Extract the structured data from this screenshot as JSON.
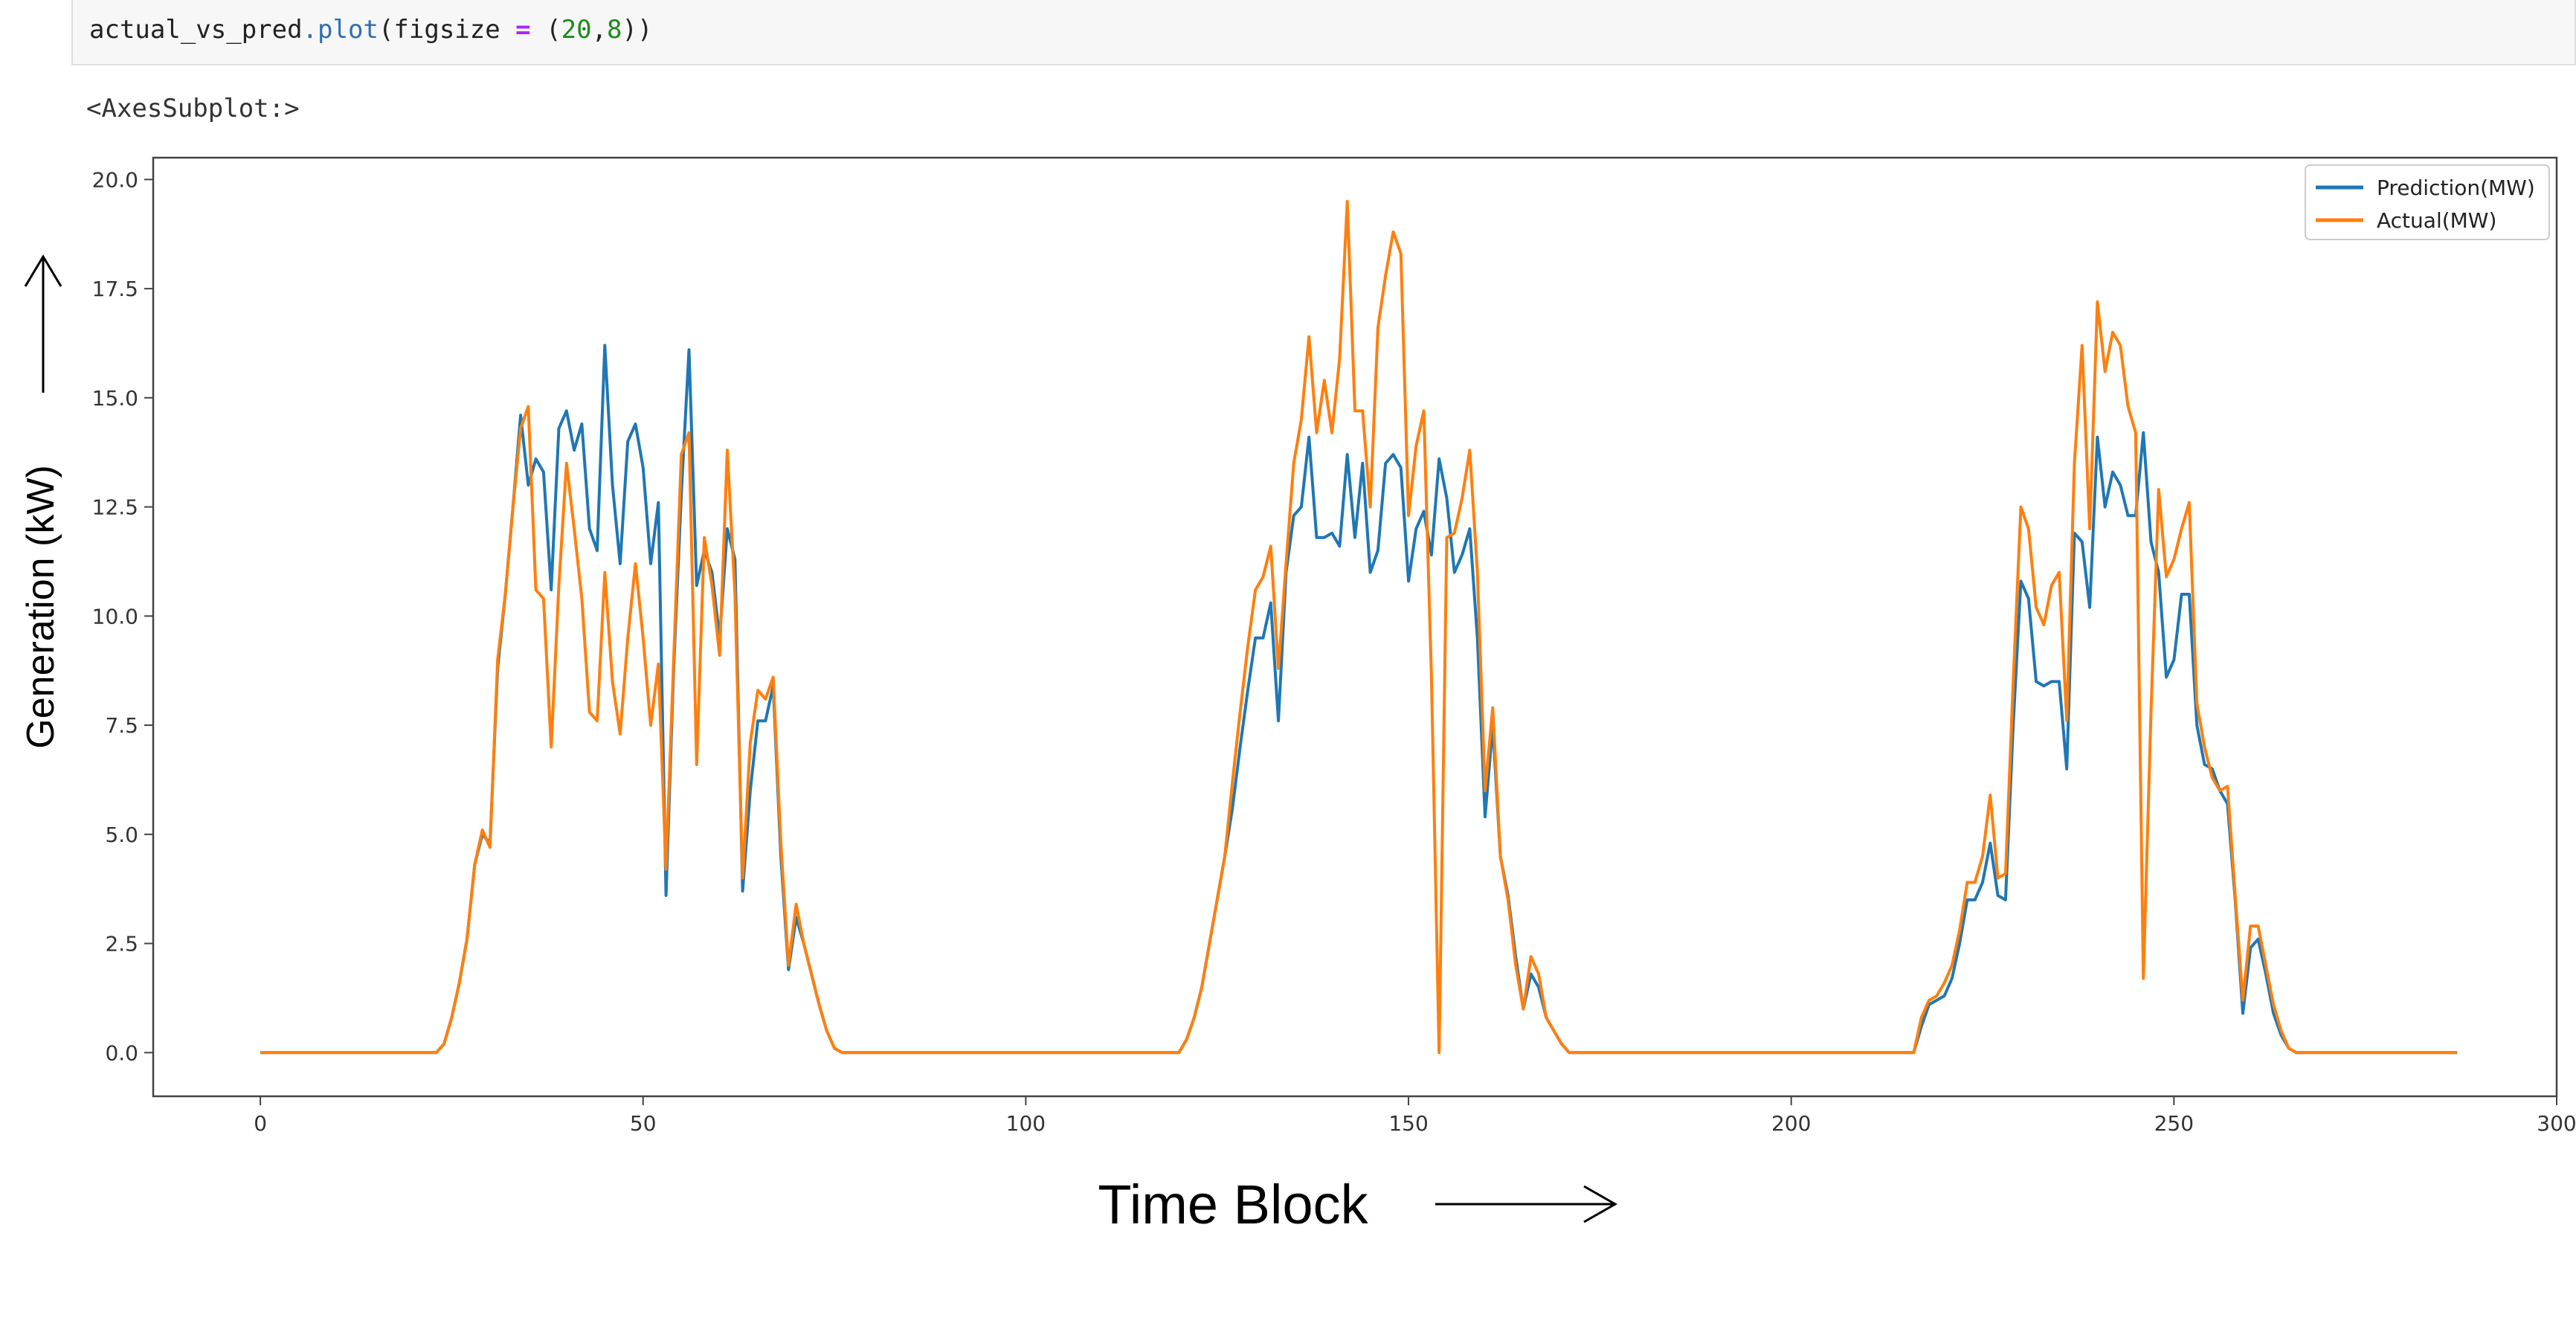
{
  "notebook": {
    "code_object": "actual_vs_pred",
    "code_method": ".plot",
    "code_args_open": "(figsize ",
    "code_op": "=",
    "code_tuple_open": " (",
    "code_num_a": "20",
    "code_comma": ",",
    "code_num_b": "8",
    "code_close": "))",
    "output_repr": "<AxesSubplot:>"
  },
  "chart_data": {
    "type": "line",
    "title": "",
    "xlabel": "Time Block",
    "ylabel": "Generation (kW)",
    "xlim": [
      -14,
      300
    ],
    "ylim": [
      -1,
      20.5
    ],
    "xticks": [
      0,
      50,
      100,
      150,
      200,
      250,
      300
    ],
    "yticks": [
      0.0,
      2.5,
      5.0,
      7.5,
      10.0,
      12.5,
      15.0,
      17.5,
      20.0
    ],
    "ytick_labels": [
      "0.0",
      "2.5",
      "5.0",
      "7.5",
      "10.0",
      "12.5",
      "15.0",
      "17.5",
      "20.0"
    ],
    "grid": false,
    "legend_position": "top-right",
    "series": [
      {
        "name": "Prediction(MW)",
        "color": "#1f77b4",
        "points": [
          [
            0,
            0
          ],
          [
            23,
            0
          ],
          [
            24,
            0.2
          ],
          [
            25,
            0.8
          ],
          [
            26,
            1.6
          ],
          [
            27,
            2.6
          ],
          [
            28,
            4.3
          ],
          [
            29,
            5.0
          ],
          [
            30,
            4.8
          ],
          [
            31,
            8.8
          ],
          [
            32,
            10.5
          ],
          [
            33,
            12.5
          ],
          [
            34,
            14.6
          ],
          [
            35,
            13.0
          ],
          [
            36,
            13.6
          ],
          [
            37,
            13.3
          ],
          [
            38,
            10.6
          ],
          [
            39,
            14.3
          ],
          [
            40,
            14.7
          ],
          [
            41,
            13.8
          ],
          [
            42,
            14.4
          ],
          [
            43,
            12.0
          ],
          [
            44,
            11.5
          ],
          [
            45,
            16.2
          ],
          [
            46,
            13.0
          ],
          [
            47,
            11.2
          ],
          [
            48,
            14.0
          ],
          [
            49,
            14.4
          ],
          [
            50,
            13.4
          ],
          [
            51,
            11.2
          ],
          [
            52,
            12.6
          ],
          [
            53,
            3.6
          ],
          [
            54,
            8.8
          ],
          [
            55,
            12.8
          ],
          [
            56,
            16.1
          ],
          [
            57,
            10.7
          ],
          [
            58,
            11.5
          ],
          [
            59,
            11.0
          ],
          [
            60,
            9.5
          ],
          [
            61,
            12.0
          ],
          [
            62,
            11.3
          ],
          [
            63,
            3.7
          ],
          [
            64,
            6.0
          ],
          [
            65,
            7.6
          ],
          [
            66,
            7.6
          ],
          [
            67,
            8.4
          ],
          [
            68,
            4.5
          ],
          [
            69,
            1.9
          ],
          [
            70,
            3.1
          ],
          [
            71,
            2.5
          ],
          [
            72,
            1.8
          ],
          [
            73,
            1.1
          ],
          [
            74,
            0.5
          ],
          [
            75,
            0.1
          ],
          [
            76,
            0
          ],
          [
            120,
            0
          ],
          [
            121,
            0.3
          ],
          [
            122,
            0.8
          ],
          [
            123,
            1.5
          ],
          [
            124,
            2.5
          ],
          [
            125,
            3.5
          ],
          [
            126,
            4.5
          ],
          [
            127,
            5.6
          ],
          [
            128,
            7.0
          ],
          [
            129,
            8.3
          ],
          [
            130,
            9.5
          ],
          [
            131,
            9.5
          ],
          [
            132,
            10.3
          ],
          [
            133,
            7.6
          ],
          [
            134,
            11.0
          ],
          [
            135,
            12.3
          ],
          [
            136,
            12.5
          ],
          [
            137,
            14.1
          ],
          [
            138,
            11.8
          ],
          [
            139,
            11.8
          ],
          [
            140,
            11.9
          ],
          [
            141,
            11.6
          ],
          [
            142,
            13.7
          ],
          [
            143,
            11.8
          ],
          [
            144,
            13.5
          ],
          [
            145,
            11.0
          ],
          [
            146,
            11.5
          ],
          [
            147,
            13.5
          ],
          [
            148,
            13.7
          ],
          [
            149,
            13.4
          ],
          [
            150,
            10.8
          ],
          [
            151,
            12.0
          ],
          [
            152,
            12.4
          ],
          [
            153,
            11.4
          ],
          [
            154,
            13.6
          ],
          [
            155,
            12.7
          ],
          [
            156,
            11.0
          ],
          [
            157,
            11.4
          ],
          [
            158,
            12.0
          ],
          [
            159,
            9.5
          ],
          [
            160,
            5.4
          ],
          [
            161,
            7.5
          ],
          [
            162,
            4.5
          ],
          [
            163,
            3.6
          ],
          [
            164,
            2.2
          ],
          [
            165,
            1.0
          ],
          [
            166,
            1.8
          ],
          [
            167,
            1.5
          ],
          [
            168,
            0.8
          ],
          [
            169,
            0.5
          ],
          [
            170,
            0.2
          ],
          [
            171,
            0
          ],
          [
            216,
            0
          ],
          [
            217,
            0.6
          ],
          [
            218,
            1.1
          ],
          [
            219,
            1.2
          ],
          [
            220,
            1.3
          ],
          [
            221,
            1.7
          ],
          [
            222,
            2.5
          ],
          [
            223,
            3.5
          ],
          [
            224,
            3.5
          ],
          [
            225,
            3.9
          ],
          [
            226,
            4.8
          ],
          [
            227,
            3.6
          ],
          [
            228,
            3.5
          ],
          [
            229,
            7.5
          ],
          [
            230,
            10.8
          ],
          [
            231,
            10.4
          ],
          [
            232,
            8.5
          ],
          [
            233,
            8.4
          ],
          [
            234,
            8.5
          ],
          [
            235,
            8.5
          ],
          [
            236,
            6.5
          ],
          [
            237,
            11.9
          ],
          [
            238,
            11.7
          ],
          [
            239,
            10.2
          ],
          [
            240,
            14.1
          ],
          [
            241,
            12.5
          ],
          [
            242,
            13.3
          ],
          [
            243,
            13.0
          ],
          [
            244,
            12.3
          ],
          [
            245,
            12.3
          ],
          [
            246,
            14.2
          ],
          [
            247,
            11.7
          ],
          [
            248,
            11.0
          ],
          [
            249,
            8.6
          ],
          [
            250,
            9.0
          ],
          [
            251,
            10.5
          ],
          [
            252,
            10.5
          ],
          [
            253,
            7.5
          ],
          [
            254,
            6.6
          ],
          [
            255,
            6.5
          ],
          [
            256,
            6.0
          ],
          [
            257,
            5.7
          ],
          [
            258,
            3.5
          ],
          [
            259,
            0.9
          ],
          [
            260,
            2.4
          ],
          [
            261,
            2.6
          ],
          [
            262,
            1.8
          ],
          [
            263,
            0.9
          ],
          [
            264,
            0.4
          ],
          [
            265,
            0.1
          ],
          [
            266,
            0
          ],
          [
            287,
            0
          ]
        ]
      },
      {
        "name": "Actual(MW)",
        "color": "#ff7f0e",
        "points": [
          [
            0,
            0
          ],
          [
            23,
            0
          ],
          [
            24,
            0.2
          ],
          [
            25,
            0.8
          ],
          [
            26,
            1.6
          ],
          [
            27,
            2.6
          ],
          [
            28,
            4.3
          ],
          [
            29,
            5.1
          ],
          [
            30,
            4.7
          ],
          [
            31,
            9.0
          ],
          [
            32,
            10.5
          ],
          [
            33,
            12.5
          ],
          [
            34,
            14.3
          ],
          [
            35,
            14.8
          ],
          [
            36,
            10.6
          ],
          [
            37,
            10.4
          ],
          [
            38,
            7.0
          ],
          [
            39,
            10.7
          ],
          [
            40,
            13.5
          ],
          [
            41,
            12.0
          ],
          [
            42,
            10.4
          ],
          [
            43,
            7.8
          ],
          [
            44,
            7.6
          ],
          [
            45,
            11.0
          ],
          [
            46,
            8.5
          ],
          [
            47,
            7.3
          ],
          [
            48,
            9.5
          ],
          [
            49,
            11.2
          ],
          [
            50,
            9.5
          ],
          [
            51,
            7.5
          ],
          [
            52,
            8.9
          ],
          [
            53,
            4.2
          ],
          [
            54,
            9.0
          ],
          [
            55,
            13.7
          ],
          [
            56,
            14.2
          ],
          [
            57,
            6.6
          ],
          [
            58,
            11.8
          ],
          [
            59,
            10.7
          ],
          [
            60,
            9.1
          ],
          [
            61,
            13.8
          ],
          [
            62,
            10.5
          ],
          [
            63,
            4.0
          ],
          [
            64,
            7.1
          ],
          [
            65,
            8.3
          ],
          [
            66,
            8.1
          ],
          [
            67,
            8.6
          ],
          [
            68,
            4.8
          ],
          [
            69,
            2.0
          ],
          [
            70,
            3.4
          ],
          [
            71,
            2.5
          ],
          [
            72,
            1.8
          ],
          [
            73,
            1.1
          ],
          [
            74,
            0.5
          ],
          [
            75,
            0.1
          ],
          [
            76,
            0
          ],
          [
            120,
            0
          ],
          [
            121,
            0.3
          ],
          [
            122,
            0.8
          ],
          [
            123,
            1.5
          ],
          [
            124,
            2.5
          ],
          [
            125,
            3.5
          ],
          [
            126,
            4.5
          ],
          [
            127,
            6.2
          ],
          [
            128,
            7.8
          ],
          [
            129,
            9.3
          ],
          [
            130,
            10.6
          ],
          [
            131,
            10.9
          ],
          [
            132,
            11.6
          ],
          [
            133,
            8.8
          ],
          [
            134,
            11.2
          ],
          [
            135,
            13.5
          ],
          [
            136,
            14.5
          ],
          [
            137,
            16.4
          ],
          [
            138,
            14.2
          ],
          [
            139,
            15.4
          ],
          [
            140,
            14.2
          ],
          [
            141,
            15.9
          ],
          [
            142,
            19.5
          ],
          [
            143,
            14.7
          ],
          [
            144,
            14.7
          ],
          [
            145,
            12.5
          ],
          [
            146,
            16.6
          ],
          [
            147,
            17.8
          ],
          [
            148,
            18.8
          ],
          [
            149,
            18.3
          ],
          [
            150,
            12.3
          ],
          [
            151,
            13.9
          ],
          [
            152,
            14.7
          ],
          [
            153,
            8.6
          ],
          [
            154,
            0
          ],
          [
            155,
            11.8
          ],
          [
            156,
            11.9
          ],
          [
            157,
            12.7
          ],
          [
            158,
            13.8
          ],
          [
            159,
            11.0
          ],
          [
            160,
            6.0
          ],
          [
            161,
            7.9
          ],
          [
            162,
            4.5
          ],
          [
            163,
            3.5
          ],
          [
            164,
            2.0
          ],
          [
            165,
            1.0
          ],
          [
            166,
            2.2
          ],
          [
            167,
            1.8
          ],
          [
            168,
            0.8
          ],
          [
            169,
            0.5
          ],
          [
            170,
            0.2
          ],
          [
            171,
            0
          ],
          [
            216,
            0
          ],
          [
            217,
            0.8
          ],
          [
            218,
            1.2
          ],
          [
            219,
            1.3
          ],
          [
            220,
            1.6
          ],
          [
            221,
            2.0
          ],
          [
            222,
            2.8
          ],
          [
            223,
            3.9
          ],
          [
            224,
            3.9
          ],
          [
            225,
            4.5
          ],
          [
            226,
            5.9
          ],
          [
            227,
            4.0
          ],
          [
            228,
            4.1
          ],
          [
            229,
            8.5
          ],
          [
            230,
            12.5
          ],
          [
            231,
            12.0
          ],
          [
            232,
            10.2
          ],
          [
            233,
            9.8
          ],
          [
            234,
            10.7
          ],
          [
            235,
            11.0
          ],
          [
            236,
            7.6
          ],
          [
            237,
            13.5
          ],
          [
            238,
            16.2
          ],
          [
            239,
            12.0
          ],
          [
            240,
            17.2
          ],
          [
            241,
            15.6
          ],
          [
            242,
            16.5
          ],
          [
            243,
            16.2
          ],
          [
            244,
            14.8
          ],
          [
            245,
            14.2
          ],
          [
            246,
            1.7
          ],
          [
            247,
            7.8
          ],
          [
            248,
            12.9
          ],
          [
            249,
            10.9
          ],
          [
            250,
            11.3
          ],
          [
            251,
            12.0
          ],
          [
            252,
            12.6
          ],
          [
            253,
            8.0
          ],
          [
            254,
            7.0
          ],
          [
            255,
            6.3
          ],
          [
            256,
            6.0
          ],
          [
            257,
            6.1
          ],
          [
            258,
            3.6
          ],
          [
            259,
            1.2
          ],
          [
            260,
            2.9
          ],
          [
            261,
            2.9
          ],
          [
            262,
            2.0
          ],
          [
            263,
            1.1
          ],
          [
            264,
            0.5
          ],
          [
            265,
            0.1
          ],
          [
            266,
            0
          ],
          [
            287,
            0
          ]
        ]
      }
    ]
  },
  "arrows": {
    "x_arrow": "→",
    "y_arrow": "↑"
  }
}
